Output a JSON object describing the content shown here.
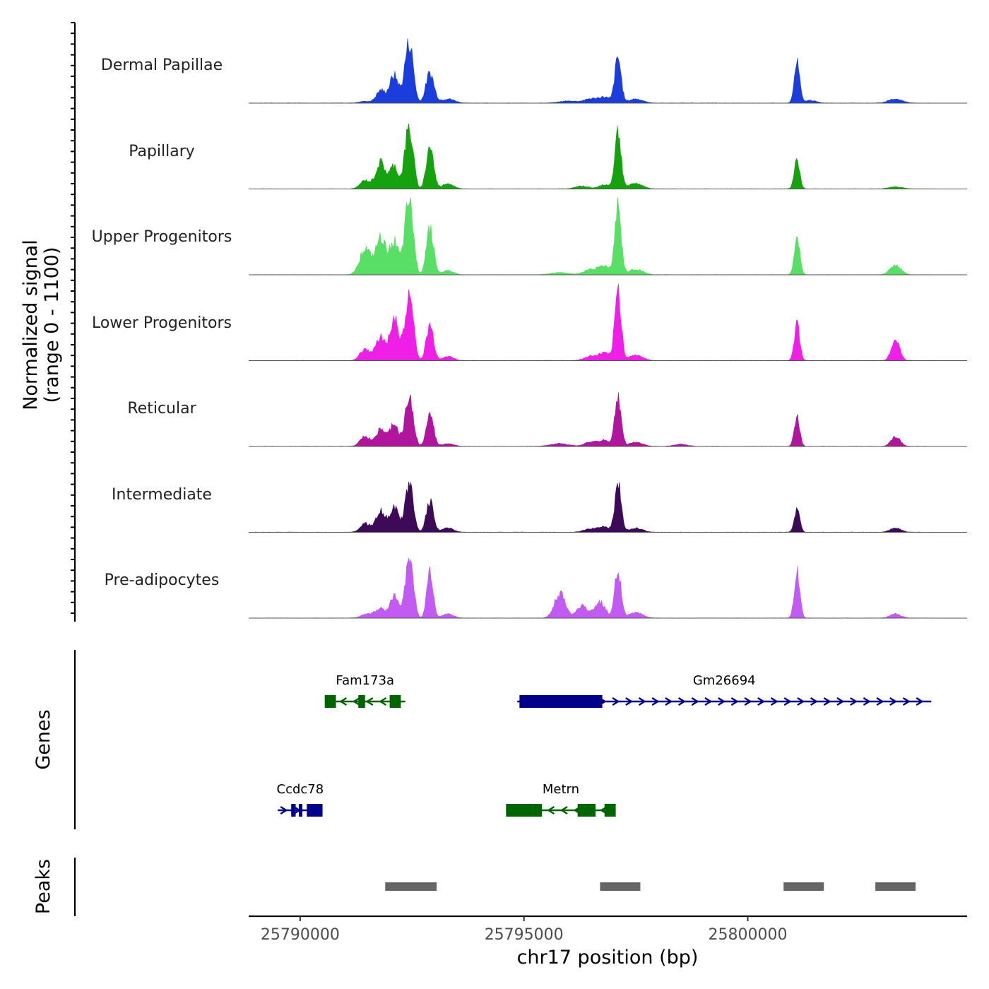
{
  "chart_data": {
    "type": "area",
    "title": "",
    "ylabel_line1": "Normalized signal",
    "ylabel_line2": "(range 0 - 1100)",
    "xlabel": "chr17 position (bp)",
    "signal_range": [
      0,
      1100
    ],
    "xlim": [
      25788850,
      25804900
    ],
    "xticks": [
      {
        "value": 25790000,
        "label": "25790000"
      },
      {
        "value": 25795000,
        "label": "25795000"
      },
      {
        "value": 25800000,
        "label": "25800000"
      }
    ],
    "tracks": [
      {
        "name": "Dermal Papillae",
        "color": "#1a3ddb",
        "peaks": [
          [
            25791450,
            25,
            130
          ],
          [
            25791800,
            180,
            100
          ],
          [
            25792100,
            400,
            100
          ],
          [
            25792400,
            680,
            80
          ],
          [
            25792500,
            380,
            70
          ],
          [
            25792900,
            430,
            90
          ],
          [
            25793300,
            60,
            150
          ],
          [
            25796000,
            30,
            200
          ],
          [
            25796500,
            60,
            150
          ],
          [
            25796800,
            80,
            120
          ],
          [
            25797100,
            650,
            70
          ],
          [
            25797500,
            60,
            150
          ],
          [
            25801100,
            570,
            60
          ],
          [
            25801400,
            40,
            120
          ],
          [
            25803300,
            60,
            150
          ]
        ]
      },
      {
        "name": "Papillary",
        "color": "#16a10e",
        "peaks": [
          [
            25791450,
            120,
            110
          ],
          [
            25791800,
            380,
            110
          ],
          [
            25792100,
            330,
            90
          ],
          [
            25792400,
            700,
            80
          ],
          [
            25792500,
            350,
            70
          ],
          [
            25792900,
            620,
            80
          ],
          [
            25793300,
            80,
            120
          ],
          [
            25796300,
            40,
            150
          ],
          [
            25796800,
            60,
            120
          ],
          [
            25797100,
            830,
            70
          ],
          [
            25797500,
            80,
            150
          ],
          [
            25801100,
            420,
            60
          ],
          [
            25803300,
            30,
            150
          ]
        ]
      },
      {
        "name": "Upper Progenitors",
        "color": "#59df65",
        "peaks": [
          [
            25791450,
            380,
            120
          ],
          [
            25791800,
            520,
            110
          ],
          [
            25792100,
            480,
            100
          ],
          [
            25792400,
            820,
            80
          ],
          [
            25792500,
            450,
            70
          ],
          [
            25792900,
            700,
            80
          ],
          [
            25793300,
            60,
            120
          ],
          [
            25795800,
            30,
            200
          ],
          [
            25796500,
            80,
            150
          ],
          [
            25796800,
            120,
            120
          ],
          [
            25797100,
            1000,
            70
          ],
          [
            25797500,
            80,
            150
          ],
          [
            25801100,
            550,
            60
          ],
          [
            25803300,
            140,
            120
          ]
        ]
      },
      {
        "name": "Lower Progenitors",
        "color": "#f01fe7",
        "peaks": [
          [
            25791450,
            170,
            110
          ],
          [
            25791800,
            340,
            110
          ],
          [
            25792100,
            600,
            90
          ],
          [
            25792400,
            700,
            90
          ],
          [
            25792500,
            380,
            70
          ],
          [
            25792900,
            500,
            80
          ],
          [
            25793300,
            60,
            120
          ],
          [
            25796500,
            60,
            150
          ],
          [
            25796800,
            100,
            120
          ],
          [
            25797100,
            1000,
            70
          ],
          [
            25797500,
            80,
            150
          ],
          [
            25801100,
            520,
            60
          ],
          [
            25803300,
            300,
            90
          ]
        ]
      },
      {
        "name": "Reticular",
        "color": "#b0159d",
        "peaks": [
          [
            25791450,
            140,
            110
          ],
          [
            25791800,
            250,
            110
          ],
          [
            25792100,
            330,
            90
          ],
          [
            25792400,
            520,
            80
          ],
          [
            25792500,
            320,
            70
          ],
          [
            25792900,
            450,
            80
          ],
          [
            25793300,
            40,
            120
          ],
          [
            25795800,
            40,
            200
          ],
          [
            25796500,
            60,
            150
          ],
          [
            25796800,
            80,
            120
          ],
          [
            25797100,
            700,
            70
          ],
          [
            25797500,
            60,
            150
          ],
          [
            25798500,
            30,
            150
          ],
          [
            25801100,
            410,
            60
          ],
          [
            25803300,
            140,
            100
          ]
        ]
      },
      {
        "name": "Intermediate",
        "color": "#3d0a57",
        "peaks": [
          [
            25791450,
            120,
            110
          ],
          [
            25791800,
            300,
            110
          ],
          [
            25792100,
            370,
            90
          ],
          [
            25792400,
            530,
            80
          ],
          [
            25792500,
            330,
            70
          ],
          [
            25792900,
            450,
            80
          ],
          [
            25793300,
            60,
            120
          ],
          [
            25796500,
            50,
            150
          ],
          [
            25796800,
            70,
            120
          ],
          [
            25797100,
            700,
            70
          ],
          [
            25797500,
            60,
            150
          ],
          [
            25801100,
            310,
            60
          ],
          [
            25803300,
            60,
            120
          ]
        ]
      },
      {
        "name": "Pre-adipocytes",
        "color": "#c25bf2",
        "peaks": [
          [
            25791500,
            60,
            130
          ],
          [
            25791800,
            140,
            110
          ],
          [
            25792100,
            320,
            90
          ],
          [
            25792400,
            620,
            80
          ],
          [
            25792500,
            380,
            70
          ],
          [
            25792900,
            650,
            70
          ],
          [
            25793300,
            60,
            120
          ],
          [
            25795800,
            360,
            120
          ],
          [
            25796300,
            180,
            120
          ],
          [
            25796700,
            230,
            120
          ],
          [
            25797100,
            700,
            70
          ],
          [
            25797500,
            80,
            150
          ],
          [
            25801100,
            720,
            60
          ],
          [
            25803300,
            60,
            120
          ]
        ]
      }
    ],
    "genes": [
      {
        "name": "Fam173a",
        "strand": "-",
        "color": "#006400",
        "start": 25790550,
        "end": 25792350,
        "row": 1,
        "exons": [
          [
            25790550,
            25790800
          ],
          [
            25791300,
            25791450
          ],
          [
            25792000,
            25792250
          ]
        ]
      },
      {
        "name": "Gm26694",
        "strand": "+",
        "color": "#00008b",
        "start": 25794850,
        "end": 25804100,
        "row": 1,
        "exons": [
          [
            25794900,
            25796750
          ]
        ]
      },
      {
        "name": "Ccdc78",
        "strand": "+",
        "color": "#00008b",
        "start": 25789500,
        "end": 25790500,
        "row": 2,
        "exons": [
          [
            25789800,
            25789900
          ],
          [
            25789970,
            25790050
          ],
          [
            25790150,
            25790500
          ]
        ]
      },
      {
        "name": "Metrn",
        "strand": "-",
        "color": "#006400",
        "start": 25794600,
        "end": 25797050,
        "row": 2,
        "exons": [
          [
            25794600,
            25795200
          ],
          [
            25795200,
            25795400
          ],
          [
            25796200,
            25796600
          ],
          [
            25796800,
            25797050
          ]
        ]
      }
    ],
    "peak_regions": [
      {
        "start": 25791900,
        "end": 25793050
      },
      {
        "start": 25796700,
        "end": 25797600
      },
      {
        "start": 25800800,
        "end": 25801700
      },
      {
        "start": 25802850,
        "end": 25803750
      }
    ]
  },
  "panels": {
    "genes_title": "Genes",
    "peaks_title": "Peaks"
  },
  "colors": {
    "peak_bar": "#666666",
    "baseline": "#555555",
    "axis": "#000000"
  }
}
